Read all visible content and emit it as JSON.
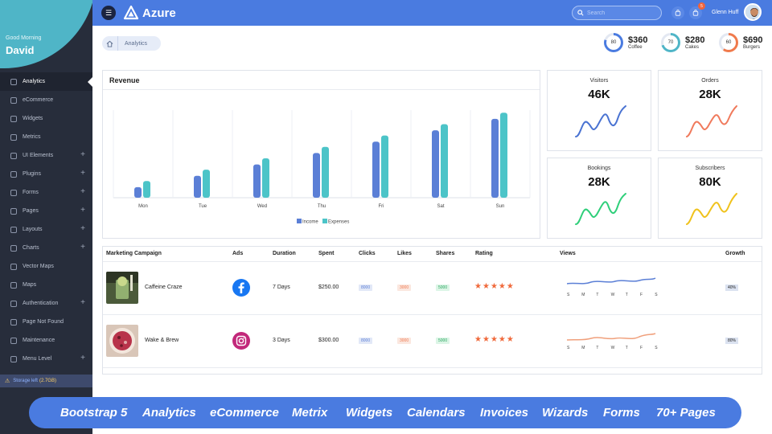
{
  "app": {
    "name": "Azure"
  },
  "sidebar": {
    "greeting": "Good Morning",
    "user": "David",
    "items": [
      {
        "label": "Analytics",
        "icon": "gauge-icon",
        "expandable": false,
        "active": true
      },
      {
        "label": "eCommerce",
        "icon": "cart-icon",
        "expandable": false
      },
      {
        "label": "Widgets",
        "icon": "box-icon",
        "expandable": false
      },
      {
        "label": "Metrics",
        "icon": "pie-icon",
        "expandable": false
      },
      {
        "label": "UI Elements",
        "icon": "grid-icon",
        "expandable": true
      },
      {
        "label": "Plugins",
        "icon": "plug-icon",
        "expandable": true
      },
      {
        "label": "Forms",
        "icon": "form-icon",
        "expandable": true
      },
      {
        "label": "Pages",
        "icon": "file-icon",
        "expandable": true
      },
      {
        "label": "Layouts",
        "icon": "layout-icon",
        "expandable": true
      },
      {
        "label": "Charts",
        "icon": "chart-icon",
        "expandable": true
      },
      {
        "label": "Vector Maps",
        "icon": "map-icon",
        "expandable": false
      },
      {
        "label": "Maps",
        "icon": "pin-icon",
        "expandable": false
      },
      {
        "label": "Authentication",
        "icon": "lock-icon",
        "expandable": true
      },
      {
        "label": "Page Not Found",
        "icon": "warning-icon",
        "expandable": false
      },
      {
        "label": "Maintenance",
        "icon": "gear-icon",
        "expandable": false
      },
      {
        "label": "Menu Level",
        "icon": "menu-icon",
        "expandable": true
      }
    ],
    "storage_label": "Storage left",
    "storage_value": "(2.7GB)"
  },
  "topbar": {
    "search_placeholder": "Search",
    "notification_count": "5",
    "user_name": "Glenn Huff"
  },
  "breadcrumb": {
    "current": "Analytics"
  },
  "kpis": [
    {
      "percent": "80",
      "value": "$360",
      "label": "Coffee",
      "color": "#4a7be0"
    },
    {
      "percent": "70",
      "value": "$280",
      "label": "Cakes",
      "color": "#4fb5c7"
    },
    {
      "percent": "60",
      "value": "$690",
      "label": "Burgers",
      "color": "#f07a4c"
    }
  ],
  "revenue": {
    "title": "Revenue"
  },
  "chart_data": {
    "type": "bar",
    "title": "Revenue",
    "categories": [
      "Mon",
      "Tue",
      "Wed",
      "Thu",
      "Fri",
      "Sat",
      "Sun"
    ],
    "series": [
      {
        "name": "Income",
        "color": "#5b7fd6",
        "values": [
          12,
          25,
          38,
          51,
          64,
          77,
          90
        ]
      },
      {
        "name": "Expenses",
        "color": "#4cc4c8",
        "values": [
          19,
          32,
          45,
          58,
          71,
          84,
          97
        ]
      }
    ],
    "ylim": [
      0,
      100
    ],
    "grid": "vertical",
    "legend": "bottom-center"
  },
  "stats": [
    {
      "title": "Visitors",
      "value": "46K",
      "color": "#4a73d2"
    },
    {
      "title": "Orders",
      "value": "28K",
      "color": "#f07a5c"
    },
    {
      "title": "Bookings",
      "value": "28K",
      "color": "#2fcf7a"
    },
    {
      "title": "Subscribers",
      "value": "80K",
      "color": "#f0c21c"
    }
  ],
  "campaign_table": {
    "headers": [
      "Marketing Campaign",
      "Ads",
      "Duration",
      "Spent",
      "Clicks",
      "Likes",
      "Shares",
      "Rating",
      "Views",
      "Growth"
    ],
    "view_days": [
      "S",
      "M",
      "T",
      "W",
      "T",
      "F",
      "S"
    ],
    "rows": [
      {
        "name": "Caffeine Craze",
        "ad": "facebook",
        "duration": "7 Days",
        "spent": "$250.00",
        "clicks": "8000",
        "likes": "3000",
        "shares": "5000",
        "rating": 5,
        "growth": "40%"
      },
      {
        "name": "Wake & Brew",
        "ad": "instagram",
        "duration": "3 Days",
        "spent": "$300.00",
        "clicks": "8000",
        "likes": "3000",
        "shares": "5000",
        "rating": 5,
        "growth": "80%"
      }
    ]
  },
  "banner": [
    "Bootstrap 5",
    "Analytics",
    "eCommerce",
    "Metrix",
    "Widgets",
    "Calendars",
    "Invoices",
    "Wizards",
    "Forms",
    "70+ Pages"
  ]
}
